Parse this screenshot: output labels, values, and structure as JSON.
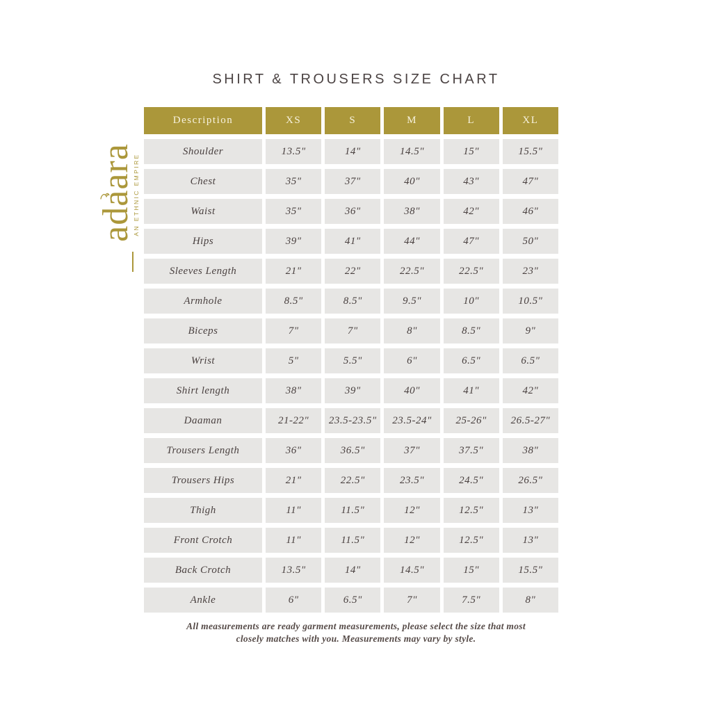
{
  "page": {
    "title": "SHIRT & TROUSERS SIZE CHART",
    "background": "#ffffff"
  },
  "colors": {
    "gold": "#ab973a",
    "header_text": "#f7f2de",
    "cell_background": "#e7e6e4",
    "cell_text": "#4a4140",
    "title_text": "#4c4444",
    "footnote_text": "#554a47"
  },
  "logo": {
    "brand": "adaara",
    "tagline": "AN ETHNIC EMPIRE",
    "ornament_icon": "swirl-icon"
  },
  "footnote": {
    "line1": "All measurements are ready garment measurements, please select the size that most",
    "line2": "closely matches with you. Measurements may vary by style."
  },
  "chart_data": {
    "type": "table",
    "title": "SHIRT & TROUSERS SIZE CHART",
    "columns": [
      "Description",
      "XS",
      "S",
      "M",
      "L",
      "XL"
    ],
    "rows": [
      {
        "label": "Shoulder",
        "values": [
          "13.5\"",
          "14\"",
          "14.5\"",
          "15\"",
          "15.5\""
        ]
      },
      {
        "label": "Chest",
        "values": [
          "35\"",
          "37\"",
          "40\"",
          "43\"",
          "47\""
        ]
      },
      {
        "label": "Waist",
        "values": [
          "35\"",
          "36\"",
          "38\"",
          "42\"",
          "46\""
        ]
      },
      {
        "label": "Hips",
        "values": [
          "39\"",
          "41\"",
          "44\"",
          "47\"",
          "50\""
        ]
      },
      {
        "label": "Sleeves Length",
        "values": [
          "21\"",
          "22\"",
          "22.5\"",
          "22.5\"",
          "23\""
        ]
      },
      {
        "label": "Armhole",
        "values": [
          "8.5\"",
          "8.5\"",
          "9.5\"",
          "10\"",
          "10.5\""
        ]
      },
      {
        "label": "Biceps",
        "values": [
          "7\"",
          "7\"",
          "8\"",
          "8.5\"",
          "9\""
        ]
      },
      {
        "label": "Wrist",
        "values": [
          "5\"",
          "5.5\"",
          "6\"",
          "6.5\"",
          "6.5\""
        ]
      },
      {
        "label": "Shirt length",
        "values": [
          "38\"",
          "39\"",
          "40\"",
          "41\"",
          "42\""
        ]
      },
      {
        "label": "Daaman",
        "values": [
          "21-22\"",
          "23.5-23.5\"",
          "23.5-24\"",
          "25-26\"",
          "26.5-27\""
        ]
      },
      {
        "label": "Trousers Length",
        "values": [
          "36\"",
          "36.5\"",
          "37\"",
          "37.5\"",
          "38\""
        ]
      },
      {
        "label": "Trousers Hips",
        "values": [
          "21\"",
          "22.5\"",
          "23.5\"",
          "24.5\"",
          "26.5\""
        ]
      },
      {
        "label": "Thigh",
        "values": [
          "11\"",
          "11.5\"",
          "12\"",
          "12.5\"",
          "13\""
        ]
      },
      {
        "label": "Front Crotch",
        "values": [
          "11\"",
          "11.5\"",
          "12\"",
          "12.5\"",
          "13\""
        ]
      },
      {
        "label": "Back Crotch",
        "values": [
          "13.5\"",
          "14\"",
          "14.5\"",
          "15\"",
          "15.5\""
        ]
      },
      {
        "label": "Ankle",
        "values": [
          "6\"",
          "6.5\"",
          "7\"",
          "7.5\"",
          "8\""
        ]
      }
    ]
  }
}
